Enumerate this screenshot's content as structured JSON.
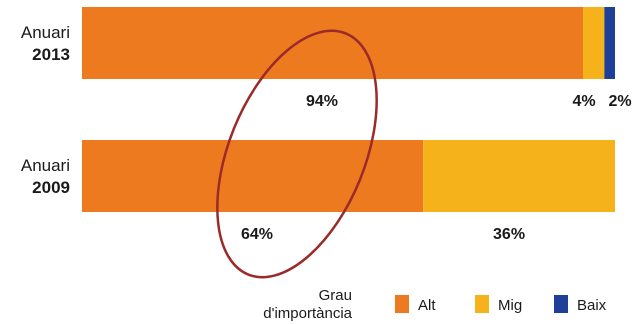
{
  "chart_data": {
    "type": "bar",
    "orientation": "horizontal",
    "stacked": true,
    "categories": [
      {
        "line1": "Anuari",
        "line2": "2013"
      },
      {
        "line1": "Anuari",
        "line2": "2009"
      }
    ],
    "series": [
      {
        "name": "Alt",
        "color": "#ed7a1f",
        "values": [
          94,
          64
        ],
        "labels": [
          "94%",
          "64%"
        ]
      },
      {
        "name": "Mig",
        "color": "#f5b21b",
        "values": [
          4,
          36
        ],
        "labels": [
          "4%",
          "36%"
        ]
      },
      {
        "name": "Baix",
        "color": "#1f3f99",
        "values": [
          2,
          0
        ],
        "labels": [
          "2%",
          ""
        ]
      }
    ],
    "xlim": [
      0,
      100
    ],
    "grid": false,
    "legend": {
      "title_line1": "Grau",
      "title_line2": "d'importància",
      "position": "bottom-right"
    },
    "annotation": {
      "shape": "ellipse",
      "color": "#9b2a2a",
      "encircles": "Alt"
    }
  }
}
